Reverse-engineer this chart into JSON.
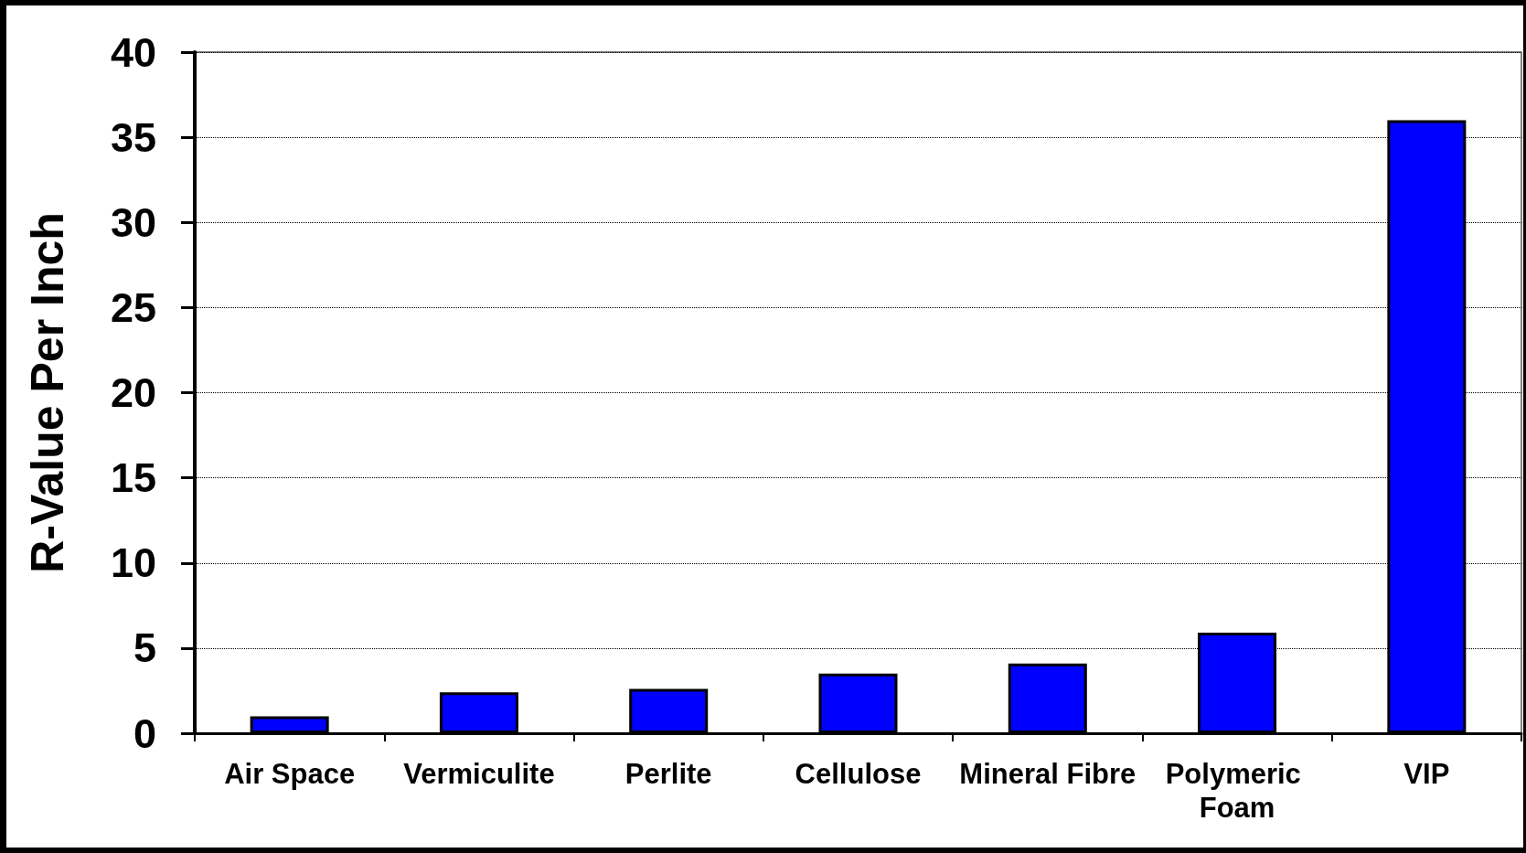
{
  "chart_data": {
    "type": "bar",
    "ylabel": "R-Value Per Inch",
    "categories": [
      "Air Space",
      "Vermiculite",
      "Perlite",
      "Cellulose",
      "Mineral Fibre",
      "Polymeric Foam",
      "VIP"
    ],
    "values": [
      1.0,
      2.4,
      2.6,
      3.5,
      4.1,
      5.9,
      36
    ],
    "color": "#0000ff",
    "ylim": [
      0,
      40
    ],
    "yticks": [
      0,
      5,
      10,
      15,
      20,
      25,
      30,
      35,
      40
    ],
    "grid": "y"
  }
}
